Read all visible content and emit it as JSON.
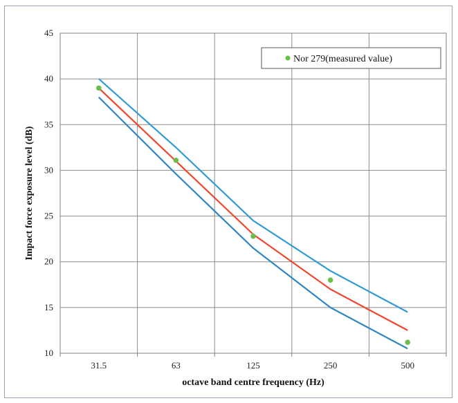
{
  "chart_data": {
    "type": "line",
    "xlabel": "octave band centre frequency (Hz)",
    "ylabel": "Impact force exposure level (dB)",
    "categories": [
      "31.5",
      "63",
      "125",
      "250",
      "500"
    ],
    "ylim": [
      10,
      45
    ],
    "yticks": [
      "10",
      "15",
      "20",
      "25",
      "30",
      "35",
      "40",
      "45"
    ],
    "grid": true,
    "legend_position": "top-right",
    "series": [
      {
        "name": "",
        "role": "upper-bound",
        "color": "#2e9bd6",
        "values": [
          40.0,
          32.5,
          24.5,
          19.0,
          14.5
        ]
      },
      {
        "name": "",
        "role": "reference",
        "color": "#f0462c",
        "values": [
          39.0,
          31.0,
          23.0,
          17.0,
          12.5
        ]
      },
      {
        "name": "",
        "role": "lower-bound",
        "color": "#2e86c1",
        "values": [
          38.0,
          29.6,
          21.5,
          15.0,
          10.5
        ]
      },
      {
        "name": "Nor 279(measured value)",
        "role": "measured",
        "color": "#6abf4b",
        "marker": "circle",
        "values": [
          39.0,
          31.1,
          22.8,
          18.0,
          11.2
        ]
      }
    ]
  }
}
